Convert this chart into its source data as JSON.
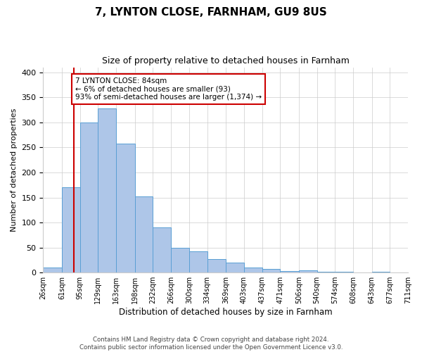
{
  "title": "7, LYNTON CLOSE, FARNHAM, GU9 8US",
  "subtitle": "Size of property relative to detached houses in Farnham",
  "xlabel": "Distribution of detached houses by size in Farnham",
  "ylabel": "Number of detached properties",
  "footer_line1": "Contains HM Land Registry data © Crown copyright and database right 2024.",
  "footer_line2": "Contains public sector information licensed under the Open Government Licence v3.0.",
  "bin_labels": [
    "26sqm",
    "61sqm",
    "95sqm",
    "129sqm",
    "163sqm",
    "198sqm",
    "232sqm",
    "266sqm",
    "300sqm",
    "334sqm",
    "369sqm",
    "403sqm",
    "437sqm",
    "471sqm",
    "506sqm",
    "540sqm",
    "574sqm",
    "608sqm",
    "643sqm",
    "677sqm",
    "711sqm"
  ],
  "bar_values": [
    10,
    170,
    300,
    328,
    257,
    152,
    90,
    50,
    43,
    27,
    20,
    10,
    8,
    3,
    5,
    1,
    2,
    0,
    2,
    0,
    2
  ],
  "bin_edges": [
    26,
    61,
    95,
    129,
    163,
    198,
    232,
    266,
    300,
    334,
    369,
    403,
    437,
    471,
    506,
    540,
    574,
    608,
    643,
    677,
    711
  ],
  "bar_color": "#aec6e8",
  "bar_edge_color": "#5a9fd4",
  "grid_color": "#cccccc",
  "annotation_text": "7 LYNTON CLOSE: 84sqm\n← 6% of detached houses are smaller (93)\n93% of semi-detached houses are larger (1,374) →",
  "annotation_box_edge": "#cc0000",
  "vline_x": 84,
  "vline_color": "#cc0000",
  "ylim": [
    0,
    410
  ],
  "yticks": [
    0,
    50,
    100,
    150,
    200,
    250,
    300,
    350,
    400
  ]
}
